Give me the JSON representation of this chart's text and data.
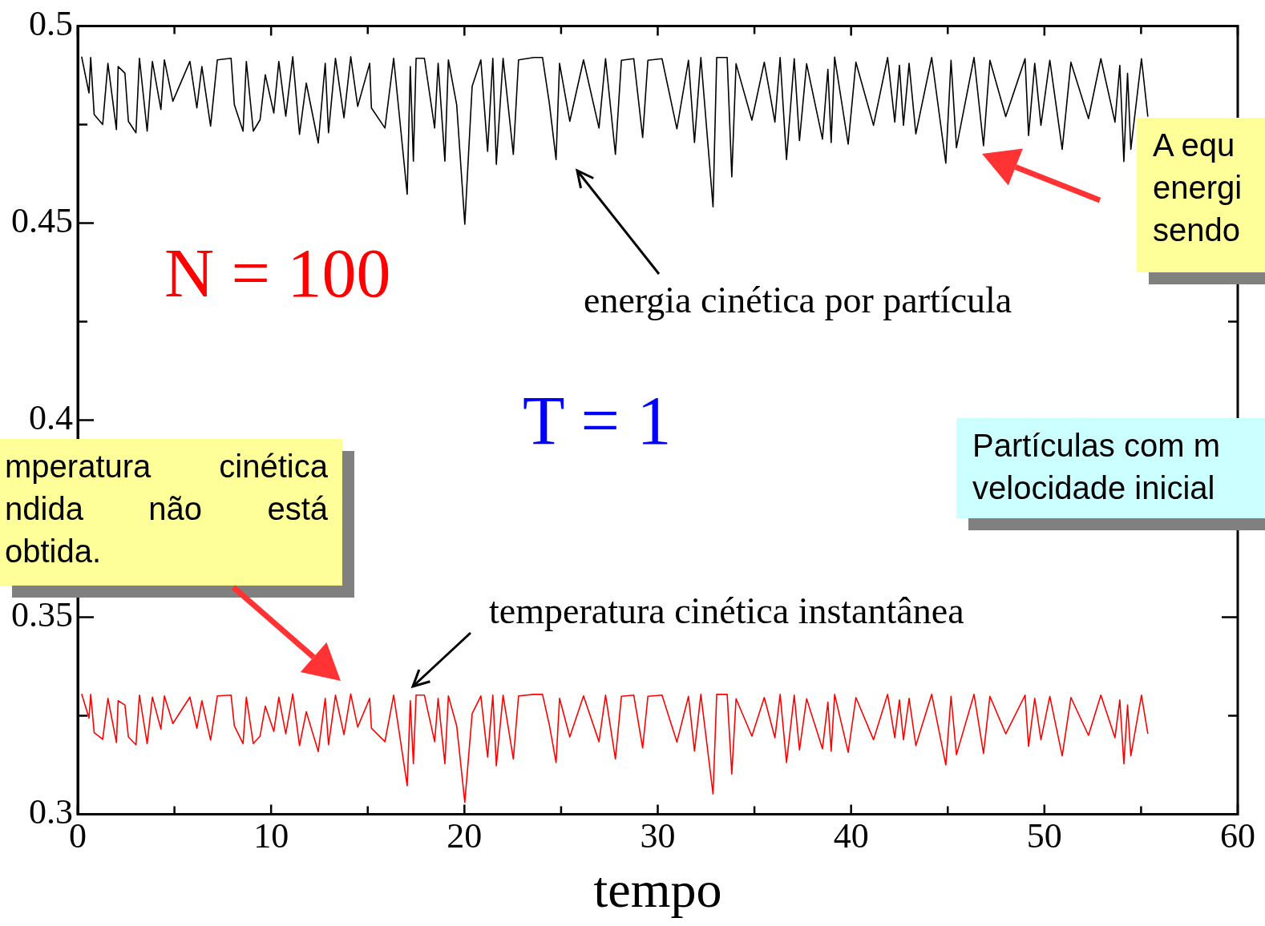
{
  "chart_data": {
    "type": "line",
    "xlabel": "tempo",
    "xlim": [
      0,
      60
    ],
    "ylim": [
      0.3,
      0.5
    ],
    "xticks": [
      0,
      {
        "value": 5,
        "label": null
      },
      10,
      {
        "value": 15,
        "label": null
      },
      20,
      {
        "value": 25,
        "label": null
      },
      30,
      {
        "value": 35,
        "label": null
      },
      40,
      {
        "value": 45,
        "label": null
      },
      50,
      {
        "value": 55,
        "label": null
      },
      60
    ],
    "yticks": [
      0.3,
      {
        "value": 0.325,
        "label": null
      },
      0.35,
      {
        "value": 0.375,
        "label": null
      },
      0.4,
      {
        "value": 0.425,
        "label": null
      },
      0.45,
      {
        "value": 0.475,
        "label": null
      },
      0.5
    ],
    "marker": "none",
    "line_style": "solid",
    "annotations": [
      "N = 100",
      "T = 1",
      "energia cinética por partícula",
      "temperatura cinética instantânea",
      "A  equ\nenergi\nsendo",
      "mperatura cinética\nndida não está\nobtida.",
      "Partículas com m\nvelocidade inicial"
    ],
    "x": [
      0.2,
      0.58,
      0.67,
      0.85,
      1.29,
      1.56,
      2.0,
      2.09,
      2.44,
      2.62,
      3.01,
      3.19,
      3.59,
      3.86,
      4.3,
      4.48,
      4.92,
      5.8,
      6.16,
      6.42,
      6.87,
      7.22,
      7.93,
      8.1,
      8.55,
      8.72,
      9.08,
      9.43,
      9.7,
      10.14,
      10.4,
      10.76,
      11.12,
      11.47,
      11.82,
      12.44,
      12.8,
      12.97,
      13.33,
      13.77,
      14.12,
      14.48,
      15.1,
      15.19,
      15.89,
      16.34,
      17.04,
      17.2,
      17.36,
      17.5,
      17.93,
      18.46,
      18.64,
      18.99,
      19.17,
      19.6,
      20.02,
      20.4,
      20.85,
      21.2,
      21.47,
      21.65,
      22.0,
      22.53,
      22.8,
      23.59,
      24.04,
      24.39,
      24.74,
      24.92,
      25.45,
      26.16,
      26.96,
      27.3,
      27.81,
      28.12,
      28.76,
      29.22,
      29.49,
      30.22,
      30.99,
      31.59,
      31.9,
      32.23,
      32.86,
      33.05,
      33.59,
      33.83,
      34.05,
      34.87,
      35.51,
      36.06,
      36.33,
      36.66,
      37.06,
      37.33,
      37.7,
      38.52,
      38.8,
      38.97,
      39.15,
      39.85,
      40.25,
      41.16,
      41.89,
      42.26,
      42.5,
      42.71,
      43.0,
      43.35,
      44.17,
      44.9,
      45.17,
      45.45,
      46.36,
      46.85,
      47.18,
      48.0,
      49.0,
      49.18,
      49.5,
      49.82,
      50.28,
      50.92,
      51.37,
      52.28,
      52.92,
      53.65,
      53.9,
      54.11,
      54.3,
      54.47,
      55.02,
      55.35
    ],
    "series": [
      {
        "color": "#000000",
        "values": [
          0.4922,
          0.483,
          0.492,
          0.4775,
          0.475,
          0.4905,
          0.4737,
          0.4897,
          0.488,
          0.4758,
          0.4729,
          0.4918,
          0.4733,
          0.491,
          0.4788,
          0.4914,
          0.4809,
          0.491,
          0.4792,
          0.4897,
          0.4746,
          0.4914,
          0.4918,
          0.48,
          0.4733,
          0.491,
          0.4733,
          0.4762,
          0.4876,
          0.4779,
          0.491,
          0.4771,
          0.4922,
          0.4725,
          0.4855,
          0.4703,
          0.4905,
          0.4729,
          0.4918,
          0.4767,
          0.4922,
          0.4796,
          0.4905,
          0.4792,
          0.4741,
          0.4918,
          0.4573,
          0.4897,
          0.4657,
          0.4918,
          0.4918,
          0.4741,
          0.4905,
          0.4657,
          0.4914,
          0.48,
          0.4497,
          0.4847,
          0.4914,
          0.4682,
          0.4918,
          0.4649,
          0.4918,
          0.4674,
          0.4914,
          0.492,
          0.492,
          0.4805,
          0.4661,
          0.4905,
          0.4758,
          0.4914,
          0.4741,
          0.4917,
          0.4674,
          0.4913,
          0.4917,
          0.4717,
          0.4913,
          0.4917,
          0.4739,
          0.4913,
          0.4704,
          0.492,
          0.4541,
          0.492,
          0.492,
          0.4617,
          0.4904,
          0.4761,
          0.4908,
          0.4756,
          0.492,
          0.4661,
          0.4917,
          0.4709,
          0.4904,
          0.4713,
          0.489,
          0.4704,
          0.4921,
          0.47,
          0.4908,
          0.4748,
          0.492,
          0.4756,
          0.49,
          0.4748,
          0.4905,
          0.4726,
          0.492,
          0.4652,
          0.4913,
          0.4691,
          0.492,
          0.4696,
          0.4913,
          0.477,
          0.4917,
          0.4722,
          0.4905,
          0.4748,
          0.4913,
          0.4687,
          0.4908,
          0.4765,
          0.4917,
          0.4756,
          0.49,
          0.4656,
          0.488,
          0.4687,
          0.4917,
          0.477
        ]
      },
      {
        "color": "#ff0000",
        "values": [
          0.3305,
          0.3244,
          0.3304,
          0.3207,
          0.319,
          0.3294,
          0.3182,
          0.3288,
          0.3277,
          0.3196,
          0.3176,
          0.3302,
          0.3179,
          0.3297,
          0.3216,
          0.33,
          0.323,
          0.3297,
          0.3218,
          0.3288,
          0.3188,
          0.33,
          0.3302,
          0.3224,
          0.3179,
          0.3297,
          0.3179,
          0.3198,
          0.3274,
          0.321,
          0.3297,
          0.3204,
          0.3305,
          0.3174,
          0.326,
          0.3159,
          0.3294,
          0.3176,
          0.3302,
          0.3202,
          0.3305,
          0.3221,
          0.3294,
          0.3218,
          0.3184,
          0.3302,
          0.3072,
          0.3288,
          0.3128,
          0.3302,
          0.3302,
          0.3184,
          0.3294,
          0.3128,
          0.33,
          0.3224,
          0.303,
          0.3255,
          0.33,
          0.3145,
          0.3302,
          0.3123,
          0.3302,
          0.314,
          0.33,
          0.3304,
          0.3304,
          0.3227,
          0.3131,
          0.3294,
          0.3196,
          0.33,
          0.3184,
          0.3302,
          0.314,
          0.3299,
          0.3302,
          0.3168,
          0.3299,
          0.3302,
          0.3183,
          0.3299,
          0.316,
          0.3304,
          0.3051,
          0.3304,
          0.3304,
          0.3102,
          0.3293,
          0.3198,
          0.3296,
          0.3194,
          0.3304,
          0.3131,
          0.3302,
          0.3163,
          0.3293,
          0.3166,
          0.3284,
          0.316,
          0.3304,
          0.3157,
          0.3296,
          0.3189,
          0.3304,
          0.3194,
          0.329,
          0.3189,
          0.3294,
          0.3174,
          0.3304,
          0.3125,
          0.3299,
          0.3151,
          0.3304,
          0.3154,
          0.3299,
          0.3204,
          0.3302,
          0.3172,
          0.3294,
          0.3189,
          0.3299,
          0.3148,
          0.3296,
          0.32,
          0.3302,
          0.3194,
          0.329,
          0.3128,
          0.3277,
          0.3148,
          0.3302,
          0.3204
        ]
      }
    ]
  }
}
